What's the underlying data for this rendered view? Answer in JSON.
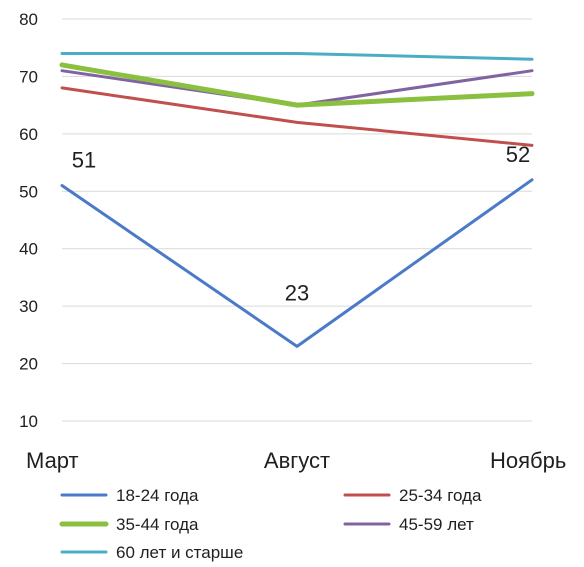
{
  "chart_data": {
    "type": "line",
    "categories": [
      "Март",
      "Август",
      "Ноябрь"
    ],
    "ylim": [
      10,
      80
    ],
    "yticks": [
      10,
      20,
      30,
      40,
      50,
      60,
      70,
      80
    ],
    "grid": true,
    "legend_position": "bottom",
    "series": [
      {
        "name": "18-24 года",
        "values": [
          51,
          23,
          52
        ],
        "color": "#4a7ac8",
        "data_labels": [
          "51",
          "23",
          "52"
        ]
      },
      {
        "name": "25-34 года",
        "values": [
          68,
          62,
          58
        ],
        "color": "#c0504d",
        "data_labels": []
      },
      {
        "name": "35-44 года",
        "values": [
          72,
          65,
          67
        ],
        "color": "#8bbf3f",
        "data_labels": []
      },
      {
        "name": "45-59 лет",
        "values": [
          71,
          65,
          71
        ],
        "color": "#8064a2",
        "data_labels": []
      },
      {
        "name": "60 лет и старше",
        "values": [
          74,
          74,
          73
        ],
        "color": "#4bacc6",
        "data_labels": []
      }
    ]
  }
}
